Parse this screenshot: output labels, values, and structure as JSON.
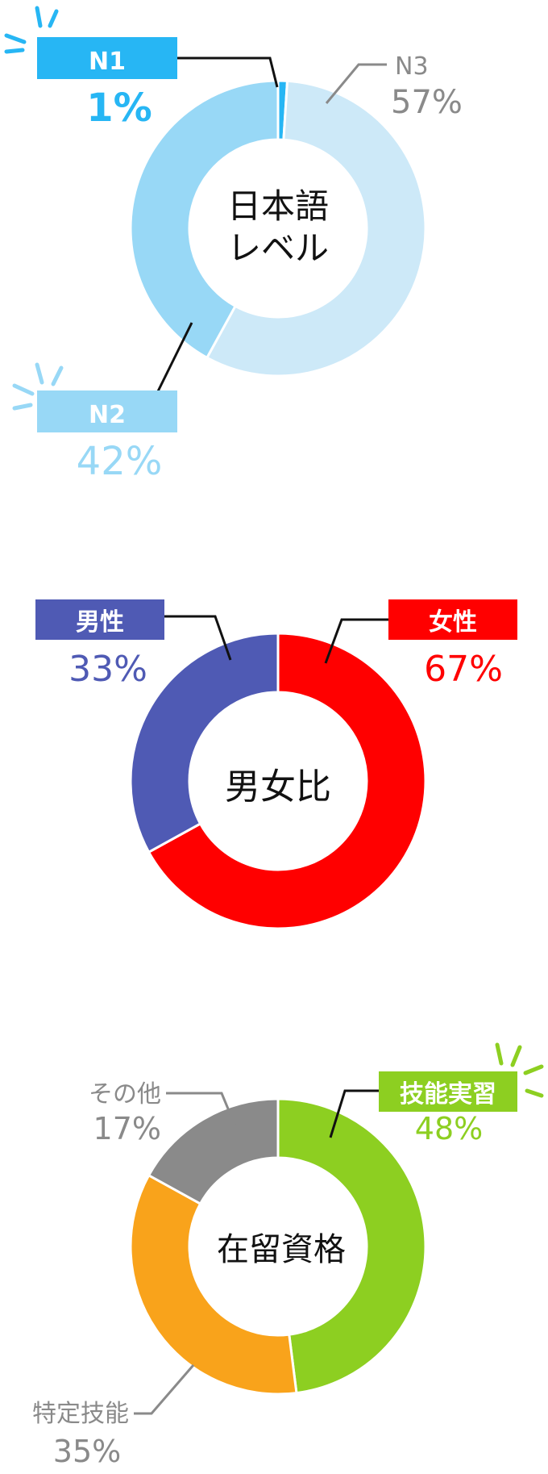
{
  "chart_data": [
    {
      "type": "pie",
      "title": "日本語レベル",
      "center_lines": [
        "日本語",
        "レベル"
      ],
      "slices": [
        {
          "label": "N1",
          "value": 1,
          "display": "1%",
          "color": "#27b6f4"
        },
        {
          "label": "N2",
          "value": 42,
          "display": "42%",
          "color": "#98d8f6"
        },
        {
          "label": "N3",
          "value": 57,
          "display": "57%",
          "color": "#cde9f8"
        }
      ]
    },
    {
      "type": "pie",
      "title": "男女比",
      "center_lines": [
        "男女比"
      ],
      "slices": [
        {
          "label": "男性",
          "value": 33,
          "display": "33%",
          "color": "#4f5ab4"
        },
        {
          "label": "女性",
          "value": 67,
          "display": "67%",
          "color": "#ff0000"
        }
      ]
    },
    {
      "type": "pie",
      "title": "在留資格",
      "center_lines": [
        "在留資格"
      ],
      "slices": [
        {
          "label": "技能実習",
          "value": 48,
          "display": "48%",
          "color": "#8dcf21"
        },
        {
          "label": "特定技能",
          "value": 35,
          "display": "35%",
          "color": "#f9a31b"
        },
        {
          "label": "その他",
          "value": 17,
          "display": "17%",
          "color": "#8a8a8a"
        }
      ]
    }
  ],
  "colors": {
    "leader": "#111111",
    "gray_label": "#8a8a8a",
    "background": "#ffffff"
  }
}
